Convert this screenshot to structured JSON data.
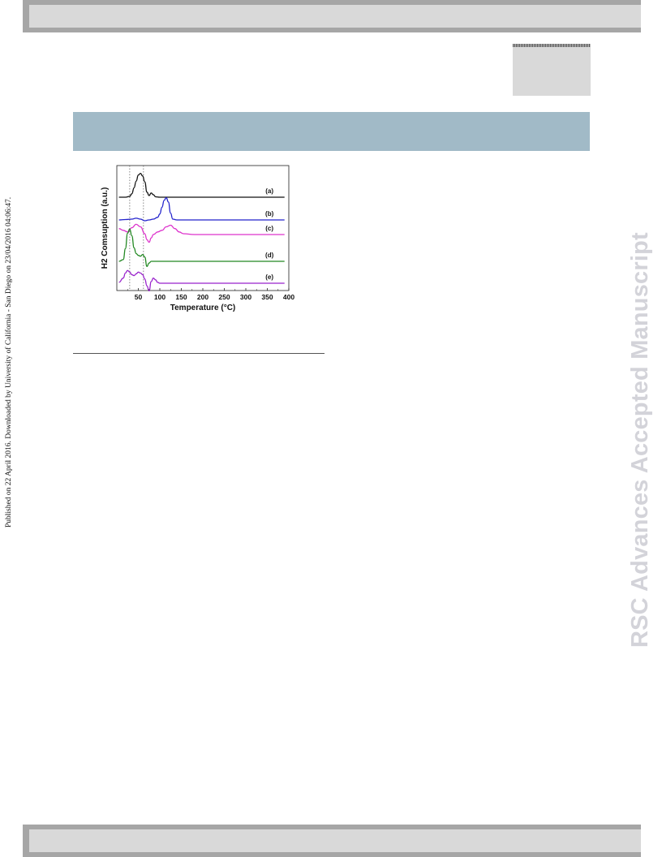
{
  "side_note": "Published on 22 April 2016. Downloaded by University of California - San Diego on 23/04/2016 04:06:47.",
  "watermark": "RSC Advances Accepted Manuscript",
  "chart_data": {
    "type": "line",
    "xlabel": "Temperature (°C)",
    "ylabel": "H2 Comsuption (a.u.)",
    "xlim": [
      0,
      400
    ],
    "xticks": [
      "50",
      "100",
      "150",
      "200",
      "250",
      "300",
      "350",
      "400"
    ],
    "grid": false,
    "reference_lines_x": [
      30,
      62
    ],
    "series": [
      {
        "name": "(a)",
        "color": "#111111",
        "offset": 0,
        "x": [
          5,
          20,
          30,
          35,
          40,
          45,
          50,
          55,
          60,
          65,
          70,
          75,
          80,
          85,
          90,
          100,
          120,
          150,
          200,
          250,
          300,
          350,
          390
        ],
        "y": [
          0,
          0,
          0.1,
          0.4,
          1.1,
          1.9,
          2.6,
          2.8,
          2.5,
          1.8,
          0.6,
          0.2,
          0.5,
          0.3,
          0.05,
          0,
          0,
          0,
          0,
          0,
          0,
          0,
          0
        ]
      },
      {
        "name": "(b)",
        "color": "#2222cc",
        "offset": 1,
        "x": [
          5,
          20,
          35,
          45,
          55,
          65,
          75,
          85,
          95,
          100,
          105,
          110,
          115,
          120,
          125,
          130,
          140,
          160,
          200,
          250,
          300,
          350,
          390
        ],
        "y": [
          0,
          0.05,
          0.1,
          0.2,
          0.1,
          -0.1,
          0,
          0.1,
          0.3,
          0.7,
          1.5,
          2.3,
          2.6,
          2.1,
          0.8,
          0.1,
          0,
          0,
          0,
          0,
          0,
          0,
          0
        ]
      },
      {
        "name": "(c)",
        "color": "#dd33cc",
        "offset": 2,
        "x": [
          5,
          15,
          25,
          35,
          45,
          55,
          65,
          70,
          75,
          80,
          85,
          95,
          105,
          115,
          125,
          135,
          145,
          155,
          180,
          220,
          300,
          350,
          390
        ],
        "y": [
          0.7,
          0.5,
          0.3,
          0.8,
          1.2,
          0.9,
          0.1,
          -0.6,
          -0.9,
          -0.4,
          0,
          0.3,
          0.5,
          0.9,
          1.1,
          0.7,
          0.3,
          0.1,
          0,
          0,
          0,
          0,
          0
        ]
      },
      {
        "name": "(d)",
        "color": "#228822",
        "offset": 3,
        "x": [
          5,
          15,
          20,
          25,
          30,
          35,
          40,
          45,
          50,
          55,
          60,
          65,
          70,
          75,
          80,
          90,
          100,
          150,
          200,
          250,
          300,
          350,
          390
        ],
        "y": [
          0,
          0.2,
          1.5,
          3.3,
          3.8,
          3.0,
          1.6,
          0.9,
          0.7,
          0.6,
          0.8,
          0.5,
          -0.6,
          -0.2,
          0,
          0,
          0,
          0,
          0,
          0,
          0,
          0,
          0
        ]
      },
      {
        "name": "(e)",
        "color": "#9922cc",
        "offset": 4,
        "x": [
          5,
          15,
          20,
          25,
          30,
          35,
          40,
          45,
          50,
          55,
          60,
          65,
          70,
          75,
          80,
          85,
          90,
          95,
          100,
          110,
          150,
          250,
          390
        ],
        "y": [
          0.1,
          0.6,
          1.2,
          1.5,
          1.3,
          1.0,
          0.9,
          1.1,
          1.3,
          1.2,
          1.0,
          0.5,
          -0.3,
          -0.9,
          0.2,
          0.6,
          0.4,
          0.1,
          0,
          0,
          0,
          0,
          0
        ]
      }
    ]
  }
}
